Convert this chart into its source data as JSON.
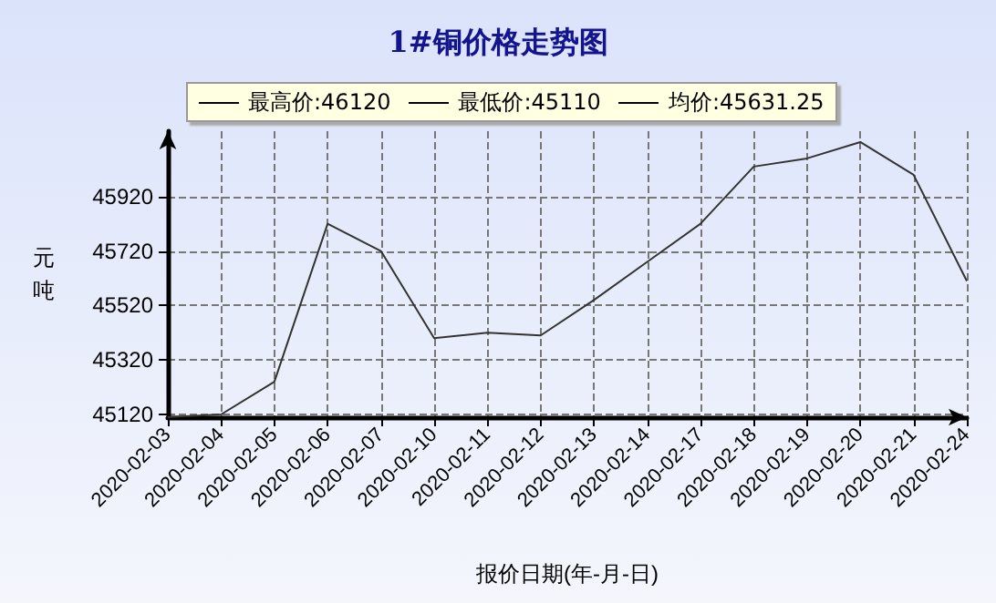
{
  "chart_data": {
    "type": "line",
    "title": "1#铜价格走势图",
    "xlabel": "报价日期(年-月-日)",
    "ylabel": "元吨",
    "annotations": [
      "最高价:46120",
      "最低价:45110",
      "均价:45631.25"
    ],
    "categories": [
      "2020-02-03",
      "2020-02-04",
      "2020-02-05",
      "2020-02-06",
      "2020-02-07",
      "2020-02-10",
      "2020-02-11",
      "2020-02-12",
      "2020-02-13",
      "2020-02-14",
      "2020-02-17",
      "2020-02-18",
      "2020-02-19",
      "2020-02-20",
      "2020-02-21",
      "2020-02-24"
    ],
    "series": [
      {
        "color": "#333333",
        "values": [
          45110,
          45120,
          45240,
          45820,
          45720,
          45400,
          45420,
          45410,
          45540,
          45680,
          45820,
          46030,
          46060,
          46120,
          46000,
          45610
        ]
      }
    ],
    "ylim": [
      45110,
      46160
    ],
    "yticks": [
      45120,
      45320,
      45520,
      45720,
      45920
    ],
    "grid": true,
    "marker": "none",
    "line_style": "solid"
  }
}
